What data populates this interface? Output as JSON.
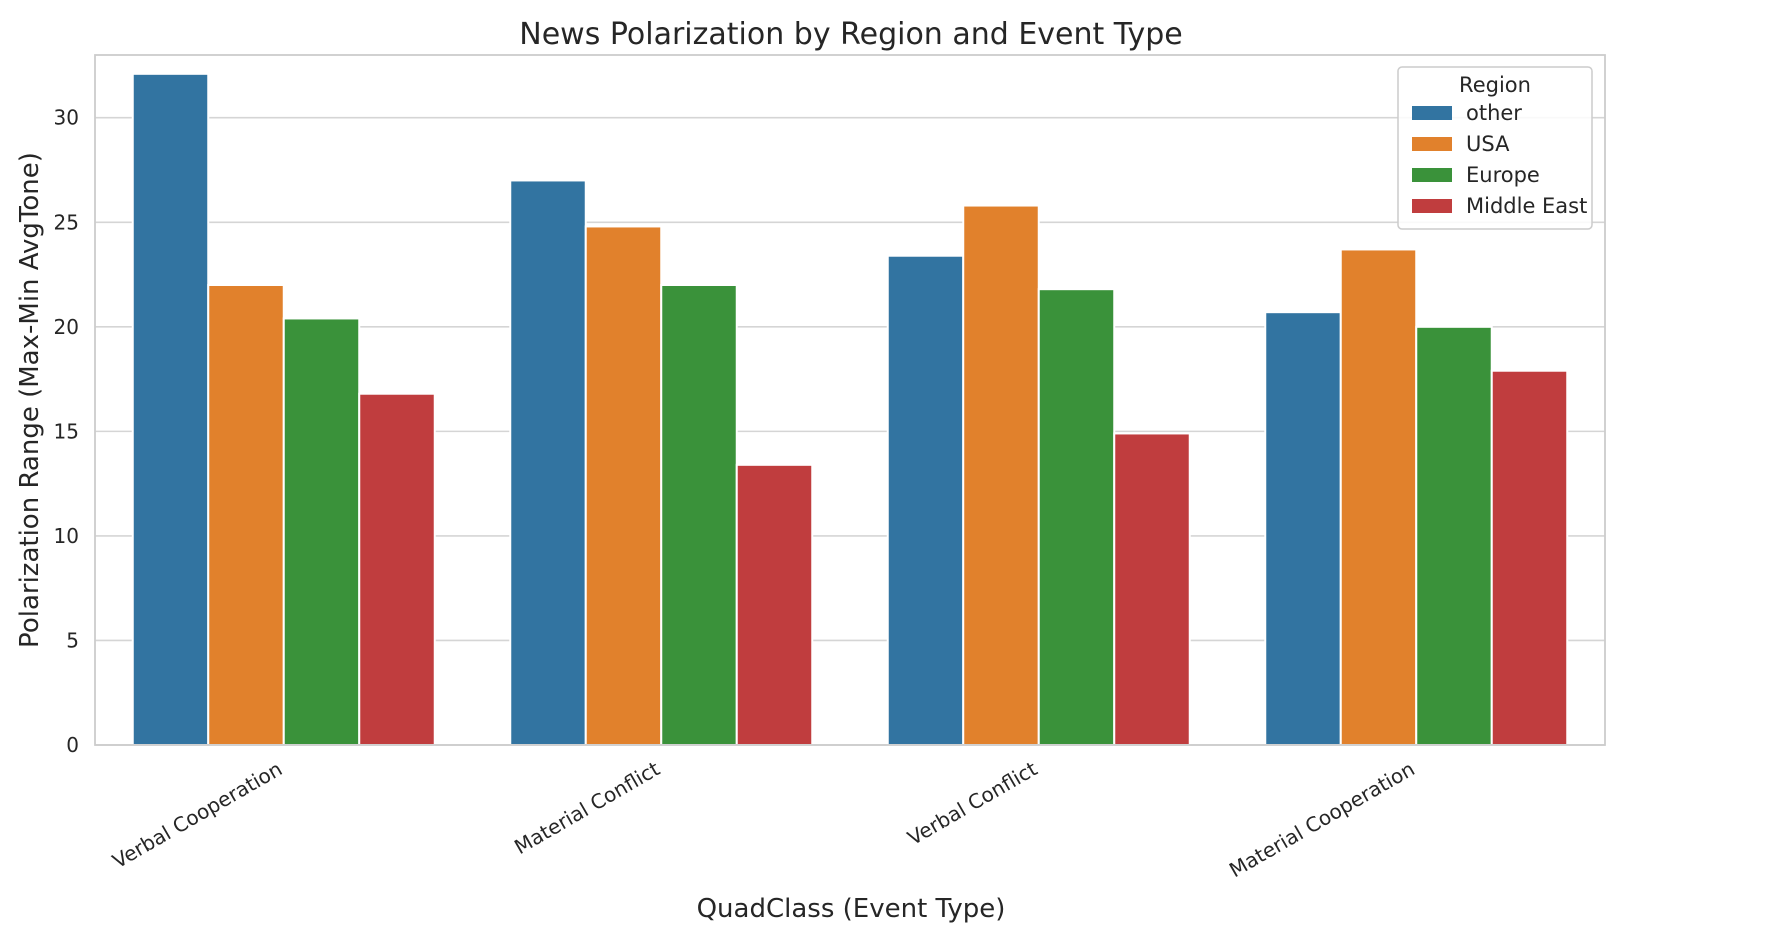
{
  "chart_data": {
    "type": "bar",
    "title": "News Polarization by Region and Event Type",
    "xlabel": "QuadClass (Event Type)",
    "ylabel": "Polarization Range (Max-Min AvgTone)",
    "ylim": [
      0,
      33
    ],
    "yticks": [
      0,
      5,
      10,
      15,
      20,
      25,
      30
    ],
    "grid": true,
    "categories": [
      "Verbal Cooperation",
      "Material Conflict",
      "Verbal Conflict",
      "Material Cooperation"
    ],
    "legend": {
      "title": "Region",
      "placement": "top-right"
    },
    "series": [
      {
        "name": "other",
        "color": "#3274a1",
        "values": [
          32.1,
          27.0,
          23.4,
          20.7
        ]
      },
      {
        "name": "USA",
        "color": "#e1812c",
        "values": [
          22.0,
          24.8,
          25.8,
          23.7
        ]
      },
      {
        "name": "Europe",
        "color": "#3a923a",
        "values": [
          20.4,
          22.0,
          21.8,
          20.0
        ]
      },
      {
        "name": "Middle East",
        "color": "#c03d3e",
        "values": [
          16.8,
          13.4,
          14.9,
          17.9
        ]
      }
    ]
  }
}
